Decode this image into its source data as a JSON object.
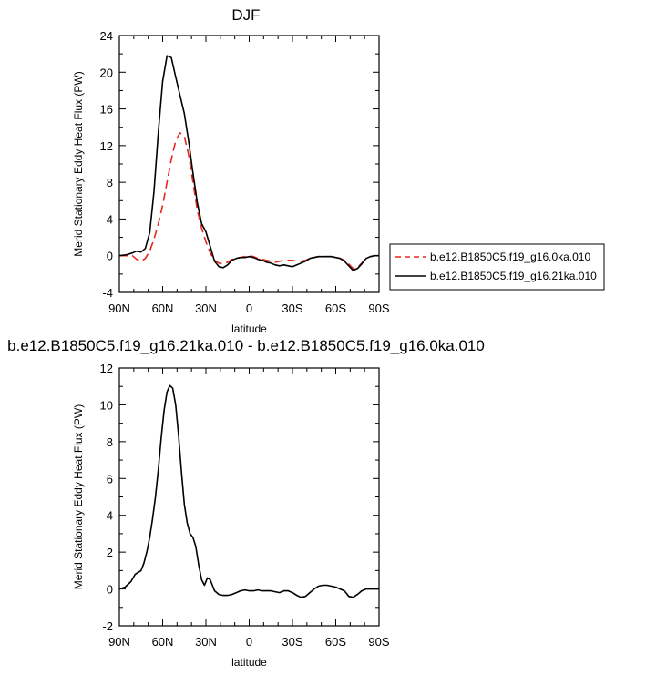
{
  "chart_data": [
    {
      "type": "line",
      "title": "DJF",
      "xlabel": "latitude",
      "ylabel": "Merid Stationary Eddy Heat Flux (PW)",
      "xlim": [
        90,
        -90
      ],
      "ylim": [
        -4,
        24
      ],
      "x_ticks": [
        90,
        60,
        30,
        0,
        -30,
        -60,
        -90
      ],
      "x_tick_labels": [
        "90N",
        "60N",
        "30N",
        "0",
        "30S",
        "60S",
        "90S"
      ],
      "y_ticks": [
        -4,
        0,
        4,
        8,
        12,
        16,
        20,
        24
      ],
      "y_tick_labels": [
        "-4",
        "0",
        "4",
        "8",
        "12",
        "16",
        "20",
        "24"
      ],
      "legend_position": "right",
      "series": [
        {
          "name": "b.e12.B1850C5.f19_g16.0ka.010",
          "color": "#e8271f",
          "dash": "dashed",
          "x": [
            90,
            85,
            81,
            78,
            75,
            72,
            69,
            66,
            63,
            60,
            57,
            54,
            51,
            48,
            45,
            42,
            39,
            36,
            33,
            30,
            27,
            24,
            21,
            18,
            15,
            12,
            9,
            6,
            3,
            0,
            -3,
            -6,
            -9,
            -12,
            -15,
            -18,
            -21,
            -24,
            -27,
            -30,
            -33,
            -36,
            -39,
            -42,
            -45,
            -48,
            -51,
            -54,
            -57,
            -60,
            -63,
            -66,
            -69,
            -72,
            -75,
            -78,
            -81,
            -84,
            -87,
            -90
          ],
          "y": [
            0,
            0,
            0,
            -0.4,
            -0.6,
            -0.3,
            0.5,
            1.8,
            3.5,
            5.5,
            8.0,
            10.5,
            12.5,
            13.4,
            13.0,
            11.0,
            8.0,
            5.0,
            3.0,
            1.5,
            0.3,
            -0.5,
            -0.8,
            -0.9,
            -0.7,
            -0.4,
            -0.3,
            -0.2,
            -0.1,
            0,
            -0.1,
            -0.3,
            -0.4,
            -0.5,
            -0.6,
            -0.7,
            -0.6,
            -0.5,
            -0.5,
            -0.5,
            -0.6,
            -0.6,
            -0.5,
            -0.3,
            -0.2,
            -0.1,
            -0.1,
            -0.1,
            -0.1,
            -0.2,
            -0.3,
            -0.5,
            -0.9,
            -1.4,
            -1.3,
            -0.8,
            -0.3,
            -0.1,
            0,
            0
          ]
        },
        {
          "name": "b.e12.B1850C5.f19_g16.21ka.010",
          "color": "#000000",
          "dash": "solid",
          "x": [
            90,
            85,
            81,
            78,
            75,
            72,
            69,
            66,
            63,
            60,
            57,
            54,
            51,
            48,
            45,
            42,
            39,
            36,
            33,
            30,
            27,
            24,
            21,
            18,
            15,
            12,
            9,
            6,
            3,
            0,
            -3,
            -6,
            -9,
            -12,
            -15,
            -18,
            -21,
            -24,
            -27,
            -30,
            -33,
            -36,
            -39,
            -42,
            -45,
            -48,
            -51,
            -54,
            -57,
            -60,
            -63,
            -66,
            -69,
            -72,
            -75,
            -78,
            -81,
            -84,
            -87,
            -90
          ],
          "y": [
            0,
            0.1,
            0.3,
            0.5,
            0.4,
            0.8,
            2.5,
            7.0,
            13.5,
            19.0,
            21.8,
            21.6,
            19.5,
            17.5,
            15.5,
            12.5,
            9.0,
            5.8,
            3.5,
            2.6,
            1.0,
            -0.6,
            -1.2,
            -1.3,
            -1.0,
            -0.5,
            -0.3,
            -0.2,
            -0.2,
            -0.1,
            -0.2,
            -0.4,
            -0.5,
            -0.7,
            -0.8,
            -1.0,
            -1.1,
            -1.0,
            -1.1,
            -1.2,
            -1.0,
            -0.8,
            -0.6,
            -0.3,
            -0.2,
            -0.1,
            -0.1,
            -0.1,
            -0.1,
            -0.2,
            -0.3,
            -0.6,
            -1.1,
            -1.6,
            -1.4,
            -0.9,
            -0.3,
            -0.1,
            0,
            0
          ]
        }
      ]
    },
    {
      "type": "line",
      "title": "b.e12.B1850C5.f19_g16.21ka.010 - b.e12.B1850C5.f19_g16.0ka.010",
      "xlabel": "latitude",
      "ylabel": "Merid Stationary Eddy Heat Flux (PW)",
      "xlim": [
        90,
        -90
      ],
      "ylim": [
        -2,
        12
      ],
      "x_ticks": [
        90,
        60,
        30,
        0,
        -30,
        -60,
        -90
      ],
      "x_tick_labels": [
        "90N",
        "60N",
        "30N",
        "0",
        "30S",
        "60S",
        "90S"
      ],
      "y_ticks": [
        -2,
        0,
        2,
        4,
        6,
        8,
        10,
        12
      ],
      "y_tick_labels": [
        "-2",
        "0",
        "2",
        "4",
        "6",
        "8",
        "10",
        "12"
      ],
      "series": [
        {
          "color": "#000000",
          "dash": "solid",
          "x": [
            90,
            86,
            82,
            79,
            77,
            75,
            73,
            71,
            69,
            67,
            65,
            63,
            61,
            59,
            57,
            55,
            53,
            51,
            49,
            47,
            45,
            43,
            41,
            39,
            37,
            35,
            33,
            31,
            29,
            27,
            24,
            21,
            18,
            15,
            12,
            9,
            6,
            3,
            0,
            -3,
            -6,
            -9,
            -12,
            -15,
            -18,
            -21,
            -24,
            -27,
            -30,
            -33,
            -36,
            -39,
            -42,
            -45,
            -48,
            -51,
            -54,
            -57,
            -60,
            -63,
            -66,
            -69,
            -72,
            -75,
            -78,
            -81,
            -84,
            -87,
            -90
          ],
          "y": [
            0,
            0.1,
            0.4,
            0.8,
            0.9,
            1.0,
            1.4,
            2.0,
            2.8,
            3.8,
            5.0,
            6.5,
            8.2,
            9.7,
            10.7,
            11.05,
            10.9,
            10.0,
            8.4,
            6.4,
            4.6,
            3.6,
            3.0,
            2.8,
            2.3,
            1.3,
            0.5,
            0.2,
            0.6,
            0.5,
            -0.1,
            -0.3,
            -0.35,
            -0.35,
            -0.3,
            -0.2,
            -0.1,
            -0.05,
            -0.1,
            -0.1,
            -0.05,
            -0.1,
            -0.1,
            -0.1,
            -0.15,
            -0.2,
            -0.1,
            -0.1,
            -0.2,
            -0.35,
            -0.45,
            -0.4,
            -0.2,
            0,
            0.15,
            0.2,
            0.2,
            0.15,
            0.1,
            0,
            -0.1,
            -0.4,
            -0.45,
            -0.3,
            -0.1,
            0,
            0,
            0,
            0
          ]
        }
      ]
    }
  ]
}
